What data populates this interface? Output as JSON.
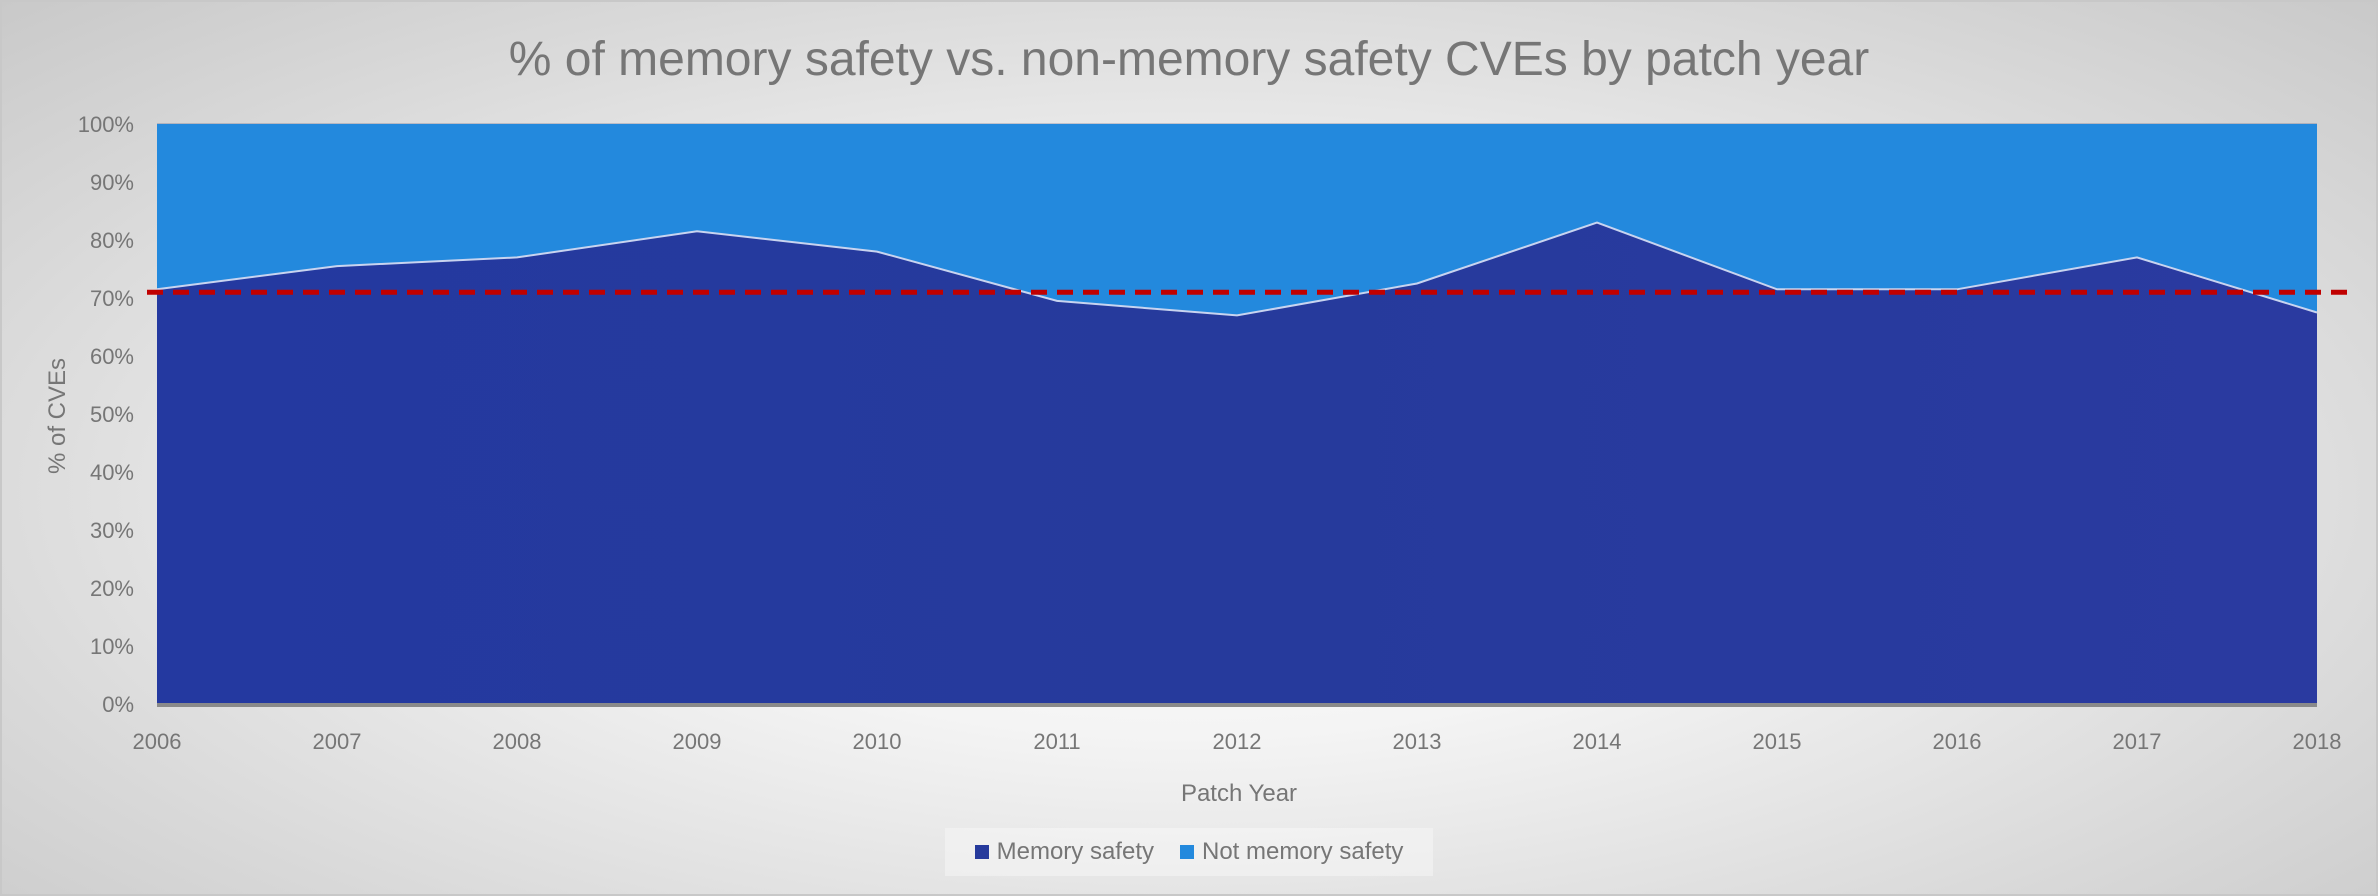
{
  "colors": {
    "memory_safety": "#263a9c",
    "not_memory_safety": "#2389dd",
    "reference_line": "#c00000",
    "text": "#767676"
  },
  "chart_data": {
    "type": "area",
    "stacked": true,
    "title": "% of memory safety vs. non-memory safety CVEs by patch year",
    "xlabel": "Patch Year",
    "ylabel": "% of CVEs",
    "x": [
      "2006",
      "2007",
      "2008",
      "2009",
      "2010",
      "2011",
      "2012",
      "2013",
      "2014",
      "2015",
      "2016",
      "2017",
      "2018"
    ],
    "y_ticks": [
      "0%",
      "10%",
      "20%",
      "30%",
      "40%",
      "50%",
      "60%",
      "70%",
      "80%",
      "90%",
      "100%"
    ],
    "ylim": [
      0,
      100
    ],
    "series": [
      {
        "name": "Memory safety",
        "values": [
          71.5,
          75.5,
          77,
          81.5,
          78,
          69.5,
          67,
          72.5,
          83,
          71.5,
          71.5,
          77,
          67.5
        ]
      },
      {
        "name": "Not memory safety",
        "values": [
          28.5,
          24.5,
          23,
          18.5,
          22,
          30.5,
          33,
          27.5,
          17,
          28.5,
          28.5,
          23,
          32.5
        ]
      }
    ],
    "reference_line": {
      "style": "dashed",
      "value": 71
    },
    "legend": {
      "position": "bottom"
    },
    "grid": true
  }
}
